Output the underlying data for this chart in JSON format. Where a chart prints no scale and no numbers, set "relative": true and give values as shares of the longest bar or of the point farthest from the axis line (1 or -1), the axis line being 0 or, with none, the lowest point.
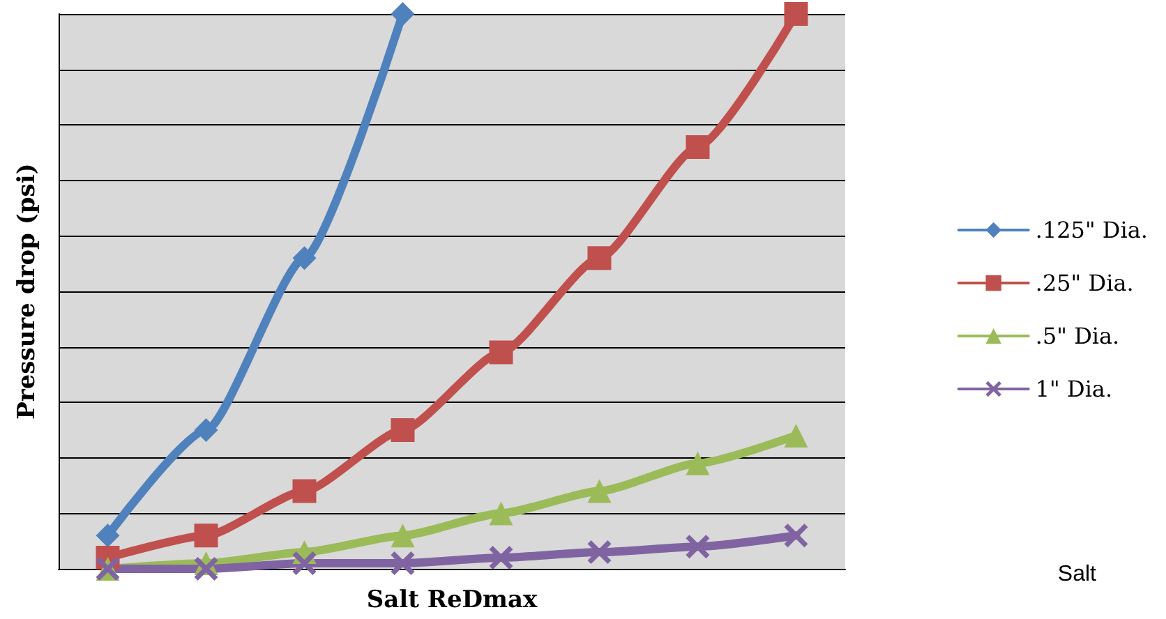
{
  "chart_data": {
    "type": "line",
    "relative": true,
    "xlabel": "Salt ReDmax",
    "ylabel": "Pressure drop (psi)",
    "annotations": [
      "Salt"
    ],
    "categories": [
      null,
      null,
      null,
      null,
      null,
      null,
      null,
      null
    ],
    "series": [
      {
        "name": ".125\" Dia.",
        "color": "#4f81bd",
        "marker": "diamond",
        "values": [
          0.06,
          0.25,
          0.56,
          1.0,
          null,
          null,
          null,
          null
        ]
      },
      {
        "name": ".25\" Dia.",
        "color": "#c0504d",
        "marker": "square",
        "values": [
          0.02,
          0.06,
          0.14,
          0.25,
          0.39,
          0.56,
          0.76,
          1.0
        ]
      },
      {
        "name": ".5\" Dia.",
        "color": "#9bbb59",
        "marker": "triangle",
        "values": [
          0.0,
          0.01,
          0.03,
          0.06,
          0.1,
          0.14,
          0.19,
          0.24
        ]
      },
      {
        "name": "1\" Dia.",
        "color": "#8064a2",
        "marker": "cross",
        "values": [
          0.0,
          0.0,
          0.01,
          0.01,
          0.02,
          0.03,
          0.04,
          0.06
        ]
      }
    ],
    "grid": "y",
    "legend": "right",
    "line_style": "solid"
  }
}
